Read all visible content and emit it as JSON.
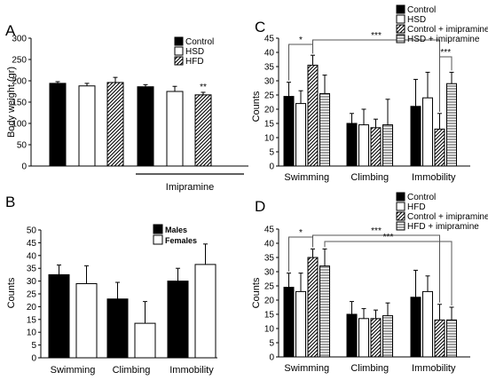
{
  "figure": {
    "panels": [
      "A",
      "B",
      "C",
      "D"
    ]
  },
  "chart_data": [
    {
      "panel": "A",
      "type": "bar",
      "ylabel": "Body weight (gr)",
      "ylim": [
        0,
        300
      ],
      "yticks": [
        0,
        50,
        100,
        150,
        200,
        250,
        300
      ],
      "x_group_label": "Imipramine",
      "legend": [
        {
          "name": "Control",
          "pattern": "black"
        },
        {
          "name": "HSD",
          "pattern": "white"
        },
        {
          "name": "HFD",
          "pattern": "hatch"
        }
      ],
      "legend_position": "top-right",
      "bars": [
        {
          "pattern": "black",
          "value": 194,
          "error": 4
        },
        {
          "pattern": "white",
          "value": 188,
          "error": 6
        },
        {
          "pattern": "hatch",
          "value": 196,
          "error": 12
        },
        {
          "pattern": "black",
          "value": 186,
          "error": 5
        },
        {
          "pattern": "white",
          "value": 175,
          "error": 12
        },
        {
          "pattern": "hatch",
          "value": 167,
          "error": 6,
          "annotation": "**"
        }
      ]
    },
    {
      "panel": "B",
      "type": "bar",
      "ylabel": "Counts",
      "ylim": [
        0,
        50
      ],
      "yticks": [
        0,
        5,
        10,
        15,
        20,
        25,
        30,
        35,
        40,
        45,
        50
      ],
      "categories": [
        "Swimming",
        "Climbing",
        "Immobility"
      ],
      "legend": [
        {
          "name": "Males",
          "pattern": "black"
        },
        {
          "name": "Females",
          "pattern": "white"
        }
      ],
      "legend_position": "top-right",
      "series": [
        {
          "name": "Males",
          "pattern": "black",
          "values": [
            32.5,
            23,
            30
          ],
          "errors": [
            3.8,
            6.5,
            5
          ]
        },
        {
          "name": "Females",
          "pattern": "white",
          "values": [
            29,
            13.5,
            36.5
          ],
          "errors": [
            7,
            8.5,
            8
          ]
        }
      ]
    },
    {
      "panel": "C",
      "type": "bar",
      "ylabel": "Counts",
      "ylim": [
        0,
        45
      ],
      "yticks": [
        0,
        5,
        10,
        15,
        20,
        25,
        30,
        35,
        40,
        45
      ],
      "categories": [
        "Swimming",
        "Climbing",
        "Immobility"
      ],
      "legend": [
        {
          "name": "Control",
          "pattern": "black"
        },
        {
          "name": "HSD",
          "pattern": "white"
        },
        {
          "name": "Control + imipramine",
          "pattern": "hatch"
        },
        {
          "name": "HSD + imipramine",
          "pattern": "hlines"
        }
      ],
      "legend_position": "top-right",
      "series": [
        {
          "name": "Control",
          "pattern": "black",
          "values": [
            24.5,
            15,
            21
          ],
          "errors": [
            5,
            3.5,
            9.5
          ]
        },
        {
          "name": "HSD",
          "pattern": "white",
          "values": [
            22,
            14.5,
            24
          ],
          "errors": [
            4.5,
            5.5,
            9
          ]
        },
        {
          "name": "Control + imipramine",
          "pattern": "hatch",
          "values": [
            35.5,
            13.5,
            13
          ],
          "errors": [
            3.5,
            3,
            5.5
          ]
        },
        {
          "name": "HSD + imipramine",
          "pattern": "hlines",
          "values": [
            25.5,
            14.5,
            29
          ],
          "errors": [
            6.5,
            9,
            4
          ]
        }
      ],
      "significance": [
        {
          "label": "*",
          "from": [
            0,
            0
          ],
          "to": [
            0,
            2
          ]
        },
        {
          "label": "***",
          "from": [
            0,
            2
          ],
          "to": [
            2,
            2
          ]
        },
        {
          "label": "***",
          "from": [
            2,
            2
          ],
          "to": [
            2,
            3
          ]
        }
      ]
    },
    {
      "panel": "D",
      "type": "bar",
      "ylabel": "Counts",
      "ylim": [
        0,
        45
      ],
      "yticks": [
        0,
        5,
        10,
        15,
        20,
        25,
        30,
        35,
        40,
        45
      ],
      "categories": [
        "Swimming",
        "Climbing",
        "Immobility"
      ],
      "legend": [
        {
          "name": "Control",
          "pattern": "black"
        },
        {
          "name": "HFD",
          "pattern": "white"
        },
        {
          "name": "Control + imipramine",
          "pattern": "hatch"
        },
        {
          "name": "HFD + imipramine",
          "pattern": "hlines"
        }
      ],
      "legend_position": "top-right",
      "series": [
        {
          "name": "Control",
          "pattern": "black",
          "values": [
            24.5,
            15,
            21
          ],
          "errors": [
            5,
            4.5,
            9.5
          ]
        },
        {
          "name": "HFD",
          "pattern": "white",
          "values": [
            23,
            13.5,
            23
          ],
          "errors": [
            6.5,
            3.5,
            5.5
          ]
        },
        {
          "name": "Control + imipramine",
          "pattern": "hatch",
          "values": [
            35,
            13.5,
            13
          ],
          "errors": [
            3,
            3,
            5.5
          ]
        },
        {
          "name": "HFD + imipramine",
          "pattern": "hlines",
          "values": [
            32,
            14.5,
            13
          ],
          "errors": [
            6,
            4.5,
            4.5
          ]
        }
      ],
      "significance": [
        {
          "label": "*",
          "from": [
            0,
            0
          ],
          "to": [
            0,
            2
          ]
        },
        {
          "label": "***",
          "from": [
            0,
            2
          ],
          "to": [
            2,
            2
          ]
        },
        {
          "label": "***",
          "from": [
            0,
            3
          ],
          "to": [
            2,
            3
          ]
        }
      ]
    }
  ]
}
